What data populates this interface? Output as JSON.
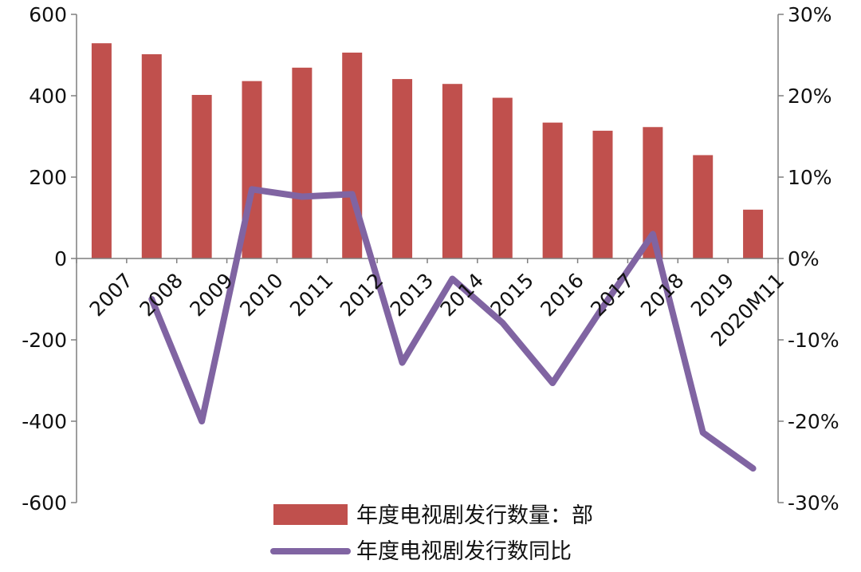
{
  "chart_data": {
    "type": "bar",
    "categories": [
      "2007",
      "2008",
      "2009",
      "2010",
      "2011",
      "2012",
      "2013",
      "2014",
      "2015",
      "2016",
      "2017",
      "2018",
      "2019",
      "2020M11"
    ],
    "series": [
      {
        "name": "年度电视剧发行数量：部",
        "type": "bar",
        "axis": "left",
        "values": [
          529,
          502,
          402,
          436,
          469,
          506,
          441,
          429,
          395,
          334,
          314,
          323,
          254,
          120
        ]
      },
      {
        "name": "年度电视剧发行数同比",
        "type": "line",
        "axis": "right",
        "values": [
          null,
          -5.0,
          -20.0,
          8.5,
          7.6,
          7.9,
          -12.8,
          -2.5,
          -7.9,
          -15.3,
          -6.0,
          3.0,
          -21.4,
          -25.8
        ]
      }
    ],
    "y_left": {
      "min": -600,
      "max": 600,
      "step": 200,
      "ticks": [
        "600",
        "400",
        "200",
        "0",
        "-200",
        "-400",
        "-600"
      ]
    },
    "y_right": {
      "min": -30,
      "max": 30,
      "step": 10,
      "ticks": [
        "30%",
        "20%",
        "10%",
        "0%",
        "-10%",
        "-20%",
        "-30%"
      ]
    },
    "legend_position": "bottom",
    "grid": false
  },
  "colors": {
    "bar": "#c0504d",
    "line": "#8064a2",
    "axis": "#7f7f7f"
  }
}
